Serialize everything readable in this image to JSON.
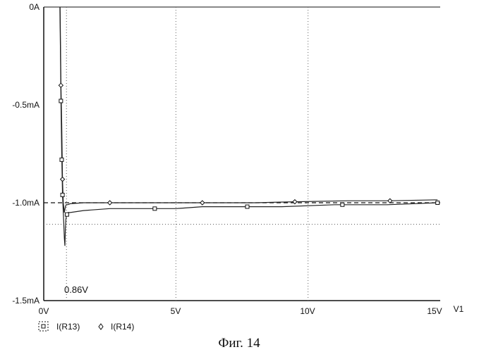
{
  "caption": "Фиг. 14",
  "chart_data": {
    "type": "line",
    "x_axis": {
      "label": "V1",
      "range": [
        0,
        15
      ],
      "ticks": [
        0,
        5,
        10,
        15
      ],
      "tick_labels": [
        "0V",
        "5V",
        "10V",
        "15V"
      ]
    },
    "y_axis": {
      "range": [
        -1.5,
        0
      ],
      "unit": "mA",
      "ticks": [
        0,
        -0.5,
        -1.0,
        -1.5
      ],
      "tick_labels": [
        "0A",
        "-0.5mA",
        "-1.0mA",
        "-1.5mA"
      ]
    },
    "grid": "dotted vertical at 5V and 10V",
    "reference_lines": [
      {
        "orientation": "vertical",
        "x": 0.86,
        "style": "dotted"
      },
      {
        "orientation": "horizontal",
        "y": -1.0,
        "style": "dashed"
      },
      {
        "orientation": "horizontal",
        "y": -1.11,
        "style": "dotted"
      }
    ],
    "annotations": [
      {
        "text": "0.86V",
        "x": 0.86
      }
    ],
    "legend": {
      "placement": "bottom-left"
    },
    "series": [
      {
        "name": "I(R13)",
        "marker": "square",
        "x": [
          0.61,
          0.63,
          0.65,
          0.68,
          0.71,
          0.75,
          0.78,
          0.8,
          0.82,
          0.84,
          0.86,
          0.88,
          0.92,
          1.0,
          1.5,
          2.5,
          3.0,
          4.2,
          5.0,
          6.0,
          7.7,
          9.0,
          11.0,
          11.3,
          13.0,
          14.9
        ],
        "y": [
          0.0,
          -0.2,
          -0.48,
          -0.75,
          -0.96,
          -1.08,
          -1.18,
          -1.22,
          -1.13,
          -1.08,
          -1.07,
          -1.06,
          -1.05,
          -1.05,
          -1.04,
          -1.03,
          -1.03,
          -1.03,
          -1.03,
          -1.02,
          -1.02,
          -1.02,
          -1.01,
          -1.01,
          -1.01,
          -1.0
        ],
        "marker_x": [
          0.65,
          0.68,
          0.71,
          0.88,
          4.2,
          7.7,
          11.3,
          14.9
        ],
        "marker_y": [
          -0.48,
          -0.78,
          -0.96,
          -1.06,
          -1.03,
          -1.02,
          -1.01,
          -1.0
        ]
      },
      {
        "name": "I(R14)",
        "marker": "diamond",
        "x": [
          0.62,
          0.65,
          0.68,
          0.71,
          0.74,
          0.78,
          0.82,
          0.85,
          0.9,
          1.0,
          1.5,
          2.5,
          4.0,
          6.0,
          8.0,
          9.5,
          11.5,
          13.1,
          14.9
        ],
        "y": [
          0.0,
          -0.4,
          -0.6,
          -0.88,
          -1.0,
          -1.05,
          -1.02,
          -1.01,
          -1.01,
          -1.005,
          -1.0,
          -1.0,
          -1.0,
          -1.0,
          -1.0,
          -0.995,
          -0.99,
          -0.99,
          -0.985
        ],
        "marker_x": [
          0.65,
          0.71,
          2.5,
          6.0,
          9.5,
          13.1
        ],
        "marker_y": [
          -0.4,
          -0.88,
          -1.0,
          -1.0,
          -0.995,
          -0.99
        ]
      }
    ]
  }
}
